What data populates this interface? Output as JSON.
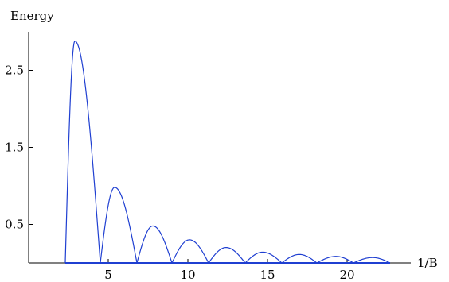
{
  "chart_data": {
    "type": "line",
    "title": "",
    "xlabel": "1/B",
    "ylabel": "Energy",
    "xlim": [
      0,
      24
    ],
    "ylim": [
      0,
      3.0
    ],
    "x_ticks": [
      5,
      10,
      15,
      20
    ],
    "x_tick_labels": [
      "5",
      "10",
      "15",
      "20"
    ],
    "y_ticks": [
      0.5,
      1.5,
      2.5
    ],
    "y_tick_labels": [
      "0.5",
      "1.5",
      "2.5"
    ],
    "grid": false,
    "legend": "none",
    "series": [
      {
        "color": "#1f3fd1",
        "arcs": [
          {
            "x_start": 2.3,
            "x_end": 4.5,
            "peak_x": 2.9,
            "peak_y": 2.88
          },
          {
            "x_start": 4.5,
            "x_end": 6.8,
            "peak_x": 5.4,
            "peak_y": 0.98
          },
          {
            "x_start": 6.8,
            "x_end": 9.0,
            "peak_x": 7.8,
            "peak_y": 0.48
          },
          {
            "x_start": 9.0,
            "x_end": 11.3,
            "peak_x": 10.1,
            "peak_y": 0.3
          },
          {
            "x_start": 11.3,
            "x_end": 13.6,
            "peak_x": 12.4,
            "peak_y": 0.2
          },
          {
            "x_start": 13.6,
            "x_end": 15.9,
            "peak_x": 14.7,
            "peak_y": 0.14
          },
          {
            "x_start": 15.9,
            "x_end": 18.1,
            "peak_x": 17.0,
            "peak_y": 0.11
          },
          {
            "x_start": 18.1,
            "x_end": 20.4,
            "peak_x": 19.3,
            "peak_y": 0.085
          },
          {
            "x_start": 20.4,
            "x_end": 22.7,
            "peak_x": 21.6,
            "peak_y": 0.07
          }
        ],
        "baseline": {
          "x_start": 2.3,
          "x_end": 22.7,
          "y": 0
        }
      }
    ]
  }
}
